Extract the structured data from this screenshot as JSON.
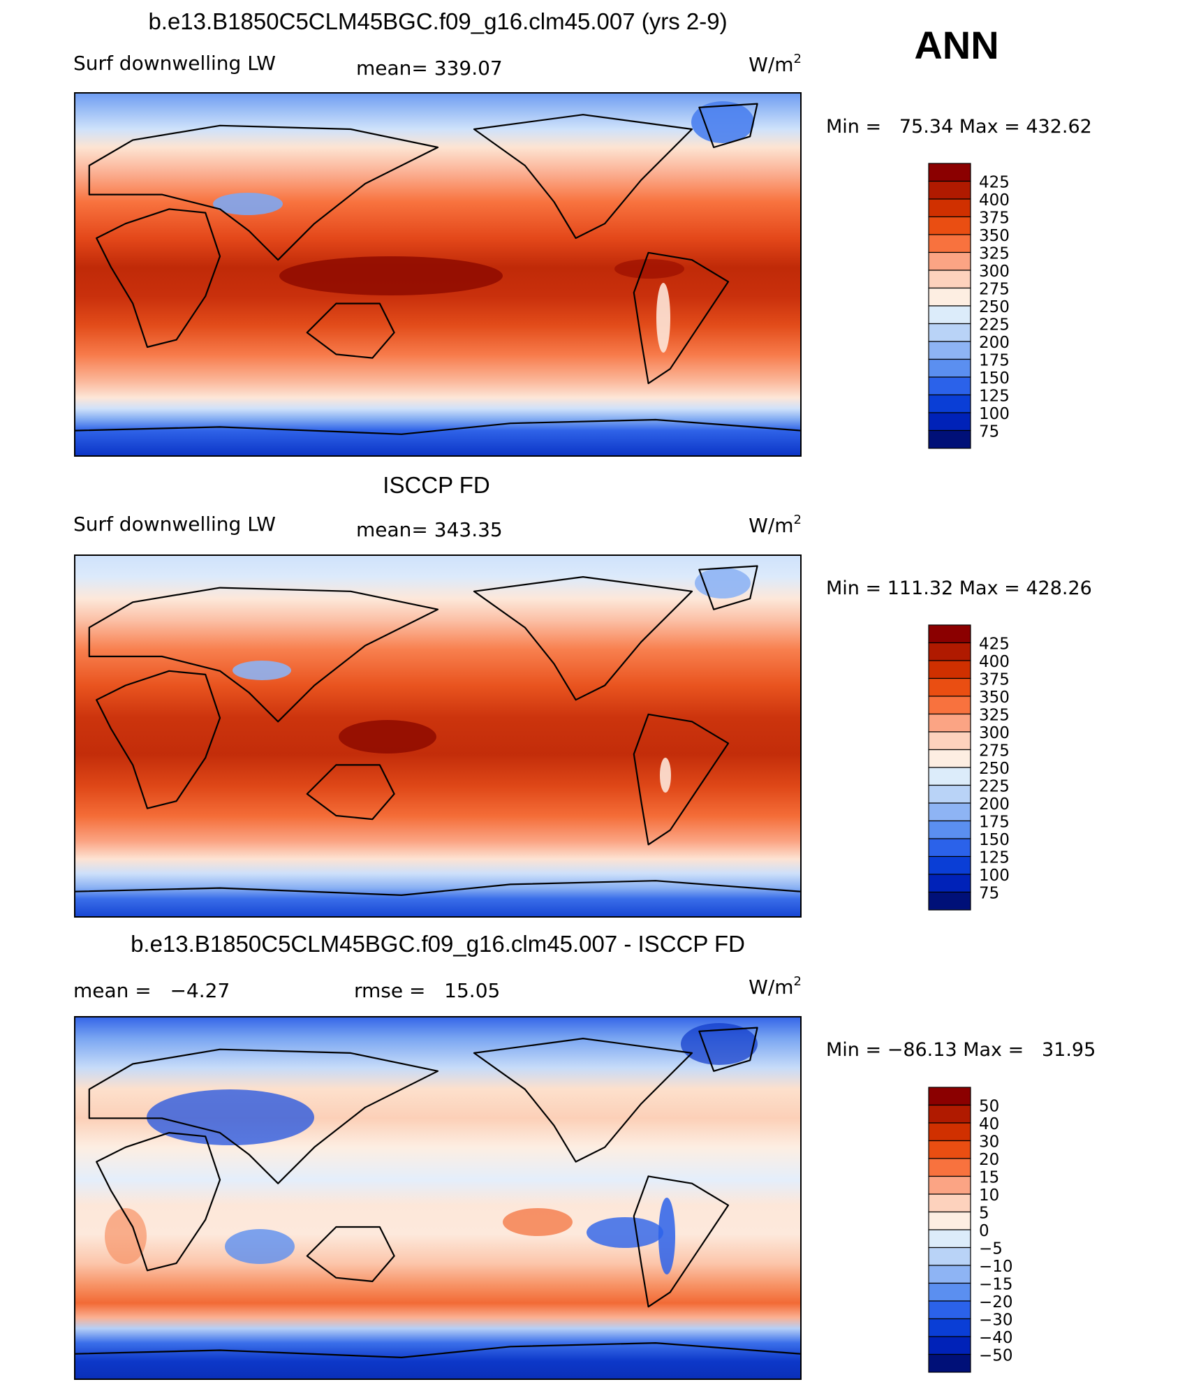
{
  "season": "ANN",
  "panels": [
    {
      "title": "b.e13.B1850C5CLM45BGC.f09_g16.clm45.007 (yrs 2-9)",
      "left_label": "Surf downwelling LW",
      "mid_label": "mean= 339.07",
      "units_base": "W/m",
      "units_exp": "2",
      "minmax": "Min =   75.34 Max = 432.62",
      "colorbar_labels": [
        "425",
        "400",
        "375",
        "350",
        "325",
        "300",
        "275",
        "250",
        "225",
        "200",
        "175",
        "150",
        "125",
        "100",
        "75"
      ],
      "equator_intensity": 1.0
    },
    {
      "title": "ISCCP FD",
      "left_label": "Surf downwelling LW",
      "mid_label": "mean= 343.35",
      "units_base": "W/m",
      "units_exp": "2",
      "minmax": "Min = 111.32 Max = 428.26",
      "colorbar_labels": [
        "425",
        "400",
        "375",
        "350",
        "325",
        "300",
        "275",
        "250",
        "225",
        "200",
        "175",
        "150",
        "125",
        "100",
        "75"
      ],
      "equator_intensity": 0.95
    },
    {
      "title": "b.e13.B1850C5CLM45BGC.f09_g16.clm45.007 - ISCCP FD",
      "left_label": "mean =   −4.27",
      "mid_label": "rmse =   15.05",
      "units_base": "W/m",
      "units_exp": "2",
      "minmax": "Min = −86.13 Max =   31.95",
      "colorbar_labels": [
        "50",
        "40",
        "30",
        "20",
        "15",
        "10",
        "5",
        "0",
        "−5",
        "−10",
        "−15",
        "−20",
        "−30",
        "−40",
        "−50"
      ]
    }
  ],
  "colors": {
    "colorbar": [
      "#8b0000",
      "#b01a00",
      "#d03000",
      "#ea4e12",
      "#f8723e",
      "#fba484",
      "#fdd2bd",
      "#fdeee2",
      "#dcecfa",
      "#b9d3f7",
      "#8eb4f4",
      "#5b8ff0",
      "#2b62ea",
      "#0a3ed6",
      "#0022b8",
      "#001078"
    ]
  }
}
